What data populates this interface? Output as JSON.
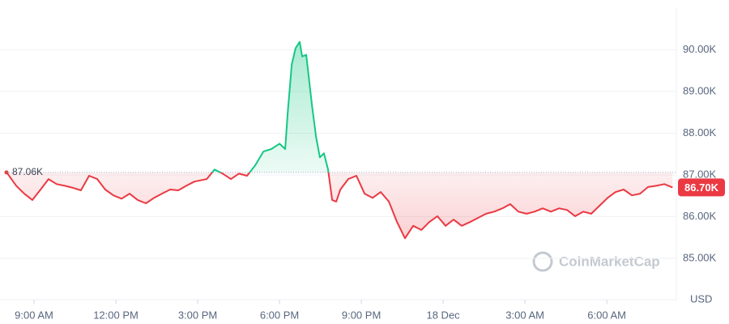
{
  "chart_data": {
    "type": "line",
    "x": [
      7.99,
      8.35,
      8.64,
      8.94,
      9.24,
      9.53,
      9.83,
      10.13,
      10.43,
      10.72,
      11.02,
      11.32,
      11.61,
      11.91,
      12.21,
      12.5,
      12.8,
      13.1,
      13.4,
      13.69,
      13.99,
      14.29,
      14.58,
      14.88,
      15.33,
      15.62,
      15.92,
      16.22,
      16.51,
      16.81,
      17.11,
      17.41,
      17.7,
      18.0,
      18.21,
      18.3,
      18.45,
      18.59,
      18.74,
      18.83,
      18.98,
      19.19,
      19.34,
      19.48,
      19.63,
      19.78,
      19.93,
      20.08,
      20.23,
      20.52,
      20.82,
      21.12,
      21.41,
      21.71,
      22.01,
      22.31,
      22.6,
      22.9,
      23.2,
      23.49,
      23.79,
      24.09,
      24.38,
      24.68,
      24.98,
      25.28,
      25.57,
      25.87,
      26.17,
      26.46,
      26.76,
      27.06,
      27.35,
      27.65,
      27.95,
      28.25,
      28.54,
      28.84,
      29.14,
      29.43,
      29.73,
      30.03,
      30.32,
      30.62,
      30.92,
      31.22,
      31.51,
      31.81,
      32.11,
      32.41
    ],
    "values": [
      87070,
      86740,
      86550,
      86400,
      86650,
      86900,
      86780,
      86740,
      86690,
      86630,
      86980,
      86900,
      86650,
      86510,
      86430,
      86550,
      86400,
      86320,
      86450,
      86550,
      86650,
      86630,
      86740,
      86840,
      86900,
      87130,
      87030,
      86900,
      87030,
      86980,
      87230,
      87560,
      87620,
      87750,
      87620,
      88490,
      89650,
      90040,
      90190,
      89840,
      89880,
      88680,
      87910,
      87420,
      87520,
      87130,
      86400,
      86360,
      86650,
      86900,
      86980,
      86550,
      86450,
      86590,
      86360,
      85870,
      85480,
      85780,
      85680,
      85870,
      86010,
      85780,
      85930,
      85780,
      85870,
      85970,
      86070,
      86120,
      86200,
      86300,
      86120,
      86070,
      86120,
      86200,
      86120,
      86200,
      86160,
      86010,
      86120,
      86070,
      86260,
      86450,
      86590,
      86650,
      86510,
      86550,
      86710,
      86740,
      86780,
      86700
    ],
    "color_up": "#16c784",
    "color_down": "#ea3943",
    "baseline": {
      "value": 87060,
      "label": "87.06K"
    },
    "current_price": {
      "value": 86700,
      "label": "86.70K"
    },
    "xlim": [
      7.99,
      32.55
    ],
    "xticks": [
      {
        "value": 9,
        "label": "9:00 AM"
      },
      {
        "value": 12,
        "label": "12:00 PM"
      },
      {
        "value": 15,
        "label": "3:00 PM"
      },
      {
        "value": 18,
        "label": "6:00 PM"
      },
      {
        "value": 21,
        "label": "9:00 PM"
      },
      {
        "value": 24,
        "label": "18 Dec"
      },
      {
        "value": 27,
        "label": "3:00 AM"
      },
      {
        "value": 30,
        "label": "6:00 AM"
      }
    ],
    "ylim": [
      84300,
      91000
    ],
    "yticks": [
      {
        "value": 85000,
        "label": "85.00K"
      },
      {
        "value": 86000,
        "label": "86.00K"
      },
      {
        "value": 87000,
        "label": "87.00K"
      },
      {
        "value": 88000,
        "label": "88.00K"
      },
      {
        "value": 89000,
        "label": "89.00K"
      },
      {
        "value": 90000,
        "label": "90.00K"
      }
    ],
    "y_axis_label": "USD",
    "watermark": "CoinMarketCap",
    "grid": true
  }
}
